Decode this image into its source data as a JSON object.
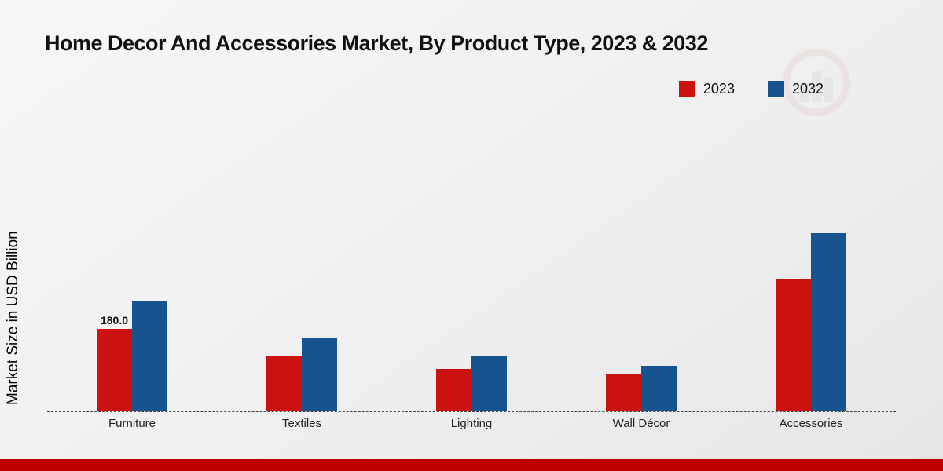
{
  "title": "Home Decor And Accessories Market, By Product Type, 2023 & 2032",
  "ylabel": "Market Size in USD Billion",
  "legend": [
    {
      "label": "2023",
      "color": "#cc1111"
    },
    {
      "label": "2032",
      "color": "#17538f"
    }
  ],
  "colors": {
    "series_2023": "#cc1111",
    "series_2032": "#17538f",
    "footer_strip": "#c00000"
  },
  "chart_data": {
    "type": "bar",
    "title": "Home Decor And Accessories Market, By Product Type, 2023 & 2032",
    "categories": [
      "Furniture",
      "Textiles",
      "Lighting",
      "Wall Décor",
      "Accessories"
    ],
    "series": [
      {
        "name": "2023",
        "color": "#cc1111",
        "values": [
          180,
          120,
          93,
          81,
          288
        ]
      },
      {
        "name": "2032",
        "color": "#17538f",
        "values": [
          242,
          161,
          122,
          99,
          389
        ]
      }
    ],
    "bar_label": {
      "series": "2023",
      "category": "Furniture",
      "text": "180.0"
    },
    "xlabel": "",
    "ylabel": "Market Size in USD Billion",
    "ylim": [
      0,
      420
    ],
    "grid": false,
    "legend_position": "top-right",
    "baseline_style": "dashed"
  }
}
